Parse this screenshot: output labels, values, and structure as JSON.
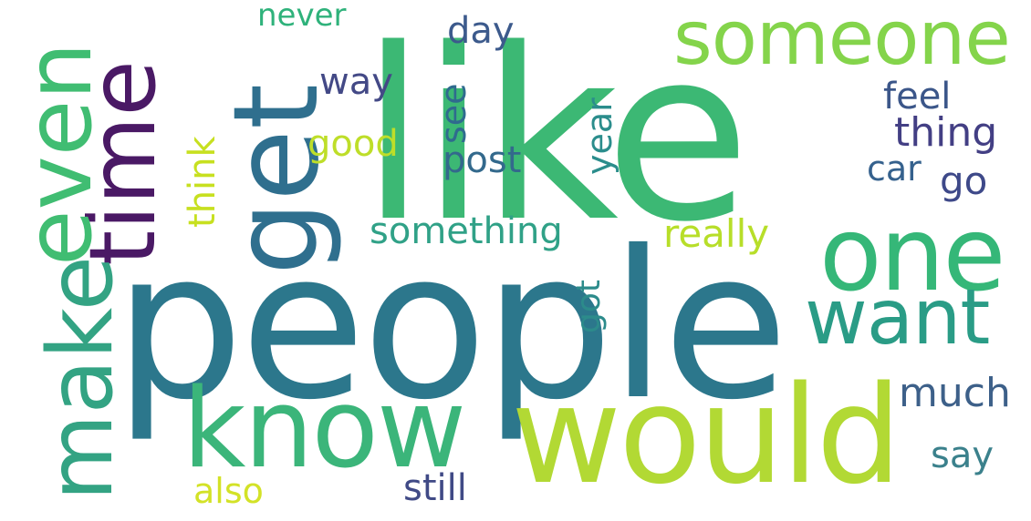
{
  "word_cloud": {
    "words": [
      {
        "text": "like",
        "color": "#3cb874"
      },
      {
        "text": "people",
        "color": "#2c778c"
      },
      {
        "text": "would",
        "color": "#b2d934"
      },
      {
        "text": "know",
        "color": "#3bb57a"
      },
      {
        "text": "get",
        "color": "#2f6f8e"
      },
      {
        "text": "one",
        "color": "#35b778"
      },
      {
        "text": "time",
        "color": "#4a1965"
      },
      {
        "text": "even",
        "color": "#40bd72"
      },
      {
        "text": "make",
        "color": "#33a383"
      },
      {
        "text": "someone",
        "color": "#84d44b"
      },
      {
        "text": "want",
        "color": "#2a9c86"
      },
      {
        "text": "something",
        "color": "#30a187"
      },
      {
        "text": "really",
        "color": "#b7de29"
      },
      {
        "text": "much",
        "color": "#3d6089"
      },
      {
        "text": "say",
        "color": "#3b818c"
      },
      {
        "text": "still",
        "color": "#404a86"
      },
      {
        "text": "also",
        "color": "#d3e227"
      },
      {
        "text": "good",
        "color": "#bede29"
      },
      {
        "text": "post",
        "color": "#33698c"
      },
      {
        "text": "think",
        "color": "#c7e020"
      },
      {
        "text": "see",
        "color": "#2f6b8e"
      },
      {
        "text": "year",
        "color": "#2b8d8c"
      },
      {
        "text": "got",
        "color": "#2c8b8b"
      },
      {
        "text": "way",
        "color": "#434986"
      },
      {
        "text": "day",
        "color": "#3c5a8c"
      },
      {
        "text": "never",
        "color": "#2fb27b"
      },
      {
        "text": "feel",
        "color": "#3b5689"
      },
      {
        "text": "thing",
        "color": "#433f84"
      },
      {
        "text": "car",
        "color": "#35618d"
      },
      {
        "text": "go",
        "color": "#3e4989"
      }
    ]
  }
}
